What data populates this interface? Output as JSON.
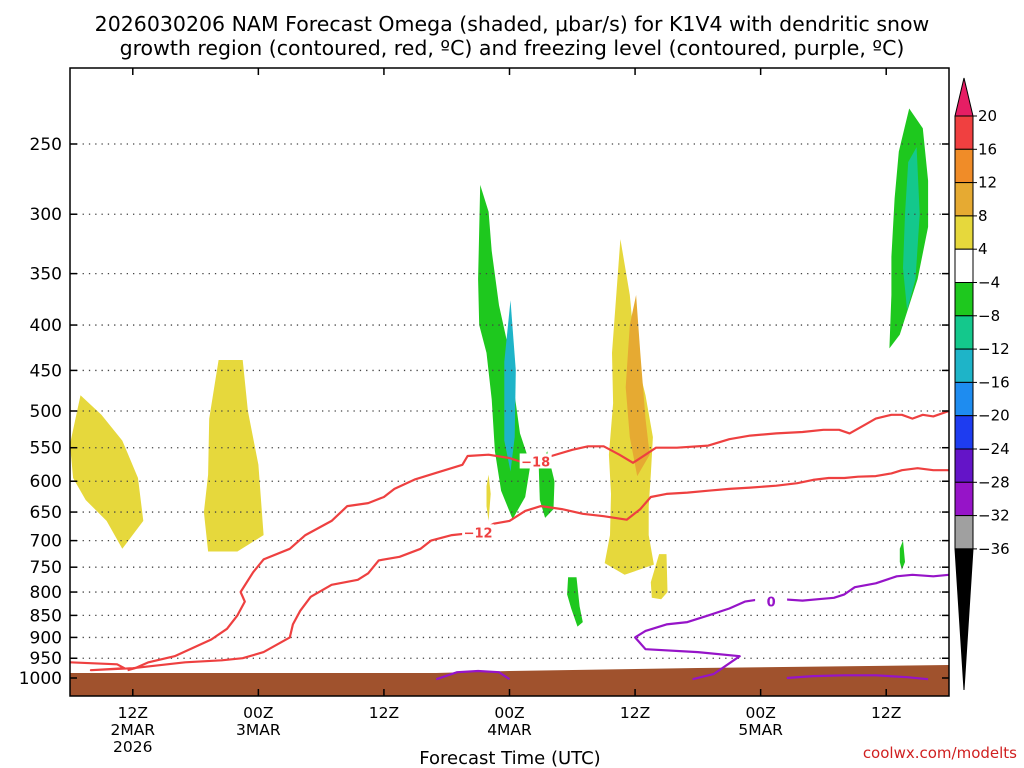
{
  "chart_data": {
    "type": "heatmap",
    "title_line1": "2026030206 NAM Forecast Omega (shaded, μbar/s) for K1V4 with dendritic snow",
    "title_line2": "growth region (contoured, red, ºC) and freezing level (contoured, purple, ºC)",
    "xlabel": "Forecast Time (UTC)",
    "credit": "coolwx.com/modelts",
    "y_axis": {
      "scale": "pressure",
      "units": "hPa",
      "reversed": true,
      "range": [
        1000,
        200
      ],
      "ticks": [
        250,
        300,
        350,
        400,
        450,
        500,
        550,
        600,
        650,
        700,
        750,
        800,
        850,
        900,
        950,
        1000
      ]
    },
    "x_axis": {
      "units": "forecast hour",
      "range": [
        0,
        84
      ],
      "ticks": [
        {
          "hour": 6,
          "line1": "12Z",
          "line2": "2MAR",
          "line3": "2026"
        },
        {
          "hour": 18,
          "line1": "00Z",
          "line2": "3MAR",
          "line3": ""
        },
        {
          "hour": 30,
          "line1": "12Z",
          "line2": "",
          "line3": ""
        },
        {
          "hour": 42,
          "line1": "00Z",
          "line2": "4MAR",
          "line3": ""
        },
        {
          "hour": 54,
          "line1": "12Z",
          "line2": "",
          "line3": ""
        },
        {
          "hour": 66,
          "line1": "00Z",
          "line2": "5MAR",
          "line3": ""
        },
        {
          "hour": 78,
          "line1": "12Z",
          "line2": "",
          "line3": ""
        }
      ]
    },
    "colorbar": {
      "levels": [
        "20",
        "16",
        "12",
        "8",
        "4",
        "−4",
        "−8",
        "−12",
        "−16",
        "−20",
        "−24",
        "−28",
        "−32",
        "−36"
      ],
      "colors": [
        "#e61e64",
        "#f04040",
        "#f08c28",
        "#e6aa32",
        "#e6d83c",
        "#ffffff",
        "#1ec81e",
        "#14c88c",
        "#1eb4c8",
        "#1e8cf0",
        "#1e3cf0",
        "#6414c8",
        "#9614c8",
        "#a0a0a0",
        "#000000"
      ]
    },
    "shaded_regions": [
      {
        "name": "yellow",
        "color": "#e6d83c",
        "points": [
          [
            0,
            545
          ],
          [
            1,
            480
          ],
          [
            3,
            505
          ],
          [
            5,
            540
          ],
          [
            6.5,
            595
          ],
          [
            7,
            665
          ],
          [
            5,
            715
          ],
          [
            3.5,
            665
          ],
          [
            1.5,
            630
          ],
          [
            0.3,
            595
          ]
        ]
      },
      {
        "name": "yellow",
        "color": "#e6d83c",
        "points": [
          [
            13.3,
            510
          ],
          [
            14.2,
            438
          ],
          [
            16.5,
            438
          ],
          [
            17,
            500
          ],
          [
            18,
            575
          ],
          [
            18.5,
            690
          ],
          [
            16,
            720
          ],
          [
            13.2,
            720
          ],
          [
            12.8,
            650
          ],
          [
            13.2,
            590
          ]
        ]
      },
      {
        "name": "green",
        "color": "#1ec81e",
        "points": [
          [
            39,
            355
          ],
          [
            39.2,
            278
          ],
          [
            40,
            298
          ],
          [
            40.3,
            330
          ],
          [
            41,
            380
          ],
          [
            42,
            430
          ],
          [
            42.5,
            480
          ],
          [
            43,
            530
          ],
          [
            44,
            575
          ],
          [
            43.5,
            625
          ],
          [
            42.3,
            662
          ],
          [
            41.2,
            615
          ],
          [
            40.6,
            555
          ],
          [
            40.3,
            485
          ],
          [
            39.8,
            430
          ],
          [
            39.1,
            400
          ]
        ]
      },
      {
        "name": "cyan",
        "color": "#1eb4c8",
        "points": [
          [
            41.5,
            440
          ],
          [
            42.1,
            375
          ],
          [
            42.6,
            450
          ],
          [
            42.5,
            535
          ],
          [
            42.1,
            585
          ],
          [
            41.5,
            540
          ]
        ]
      },
      {
        "name": "yellow",
        "color": "#e6d83c",
        "points": [
          [
            39.8,
            608
          ],
          [
            40,
            590
          ],
          [
            40.2,
            620
          ],
          [
            40,
            665
          ],
          [
            39.8,
            640
          ]
        ]
      },
      {
        "name": "green",
        "color": "#1ec81e",
        "points": [
          [
            44.8,
            580
          ],
          [
            45.6,
            555
          ],
          [
            46.3,
            600
          ],
          [
            46.2,
            645
          ],
          [
            45.4,
            660
          ],
          [
            44.9,
            630
          ]
        ]
      },
      {
        "name": "green",
        "color": "#1ec81e",
        "points": [
          [
            47.6,
            770
          ],
          [
            48.4,
            770
          ],
          [
            48.7,
            830
          ],
          [
            49,
            865
          ],
          [
            48.5,
            875
          ],
          [
            47.9,
            835
          ],
          [
            47.5,
            805
          ]
        ]
      },
      {
        "name": "yellow",
        "color": "#e6d83c",
        "points": [
          [
            51.8,
            430
          ],
          [
            52.6,
            320
          ],
          [
            53.5,
            370
          ],
          [
            54,
            430
          ],
          [
            55,
            480
          ],
          [
            55.7,
            535
          ],
          [
            55.5,
            590
          ],
          [
            55.3,
            640
          ],
          [
            55.3,
            690
          ],
          [
            55.8,
            745
          ],
          [
            53,
            765
          ],
          [
            51.1,
            742
          ],
          [
            51.6,
            690
          ],
          [
            51.7,
            620
          ],
          [
            51.5,
            560
          ],
          [
            51.9,
            490
          ]
        ]
      },
      {
        "name": "orange",
        "color": "#e6aa32",
        "points": [
          [
            53.5,
            400
          ],
          [
            54.1,
            370
          ],
          [
            54.5,
            430
          ],
          [
            55,
            510
          ],
          [
            55.4,
            560
          ],
          [
            54.2,
            592
          ],
          [
            53.5,
            535
          ],
          [
            53.1,
            470
          ]
        ]
      },
      {
        "name": "yellow",
        "color": "#e6d83c",
        "points": [
          [
            55.5,
            780
          ],
          [
            56.3,
            725
          ],
          [
            57,
            725
          ],
          [
            57.1,
            800
          ],
          [
            56.5,
            815
          ],
          [
            55.6,
            812
          ]
        ]
      },
      {
        "name": "green",
        "color": "#1ec81e",
        "points": [
          [
            78.5,
            335
          ],
          [
            78.8,
            288
          ],
          [
            79.2,
            255
          ],
          [
            80.2,
            228
          ],
          [
            81.5,
            240
          ],
          [
            82,
            275
          ],
          [
            82,
            310
          ],
          [
            81,
            355
          ],
          [
            79.3,
            410
          ],
          [
            78.3,
            425
          ],
          [
            78.5,
            370
          ]
        ]
      },
      {
        "name": "cyan-green",
        "color": "#14c88c",
        "points": [
          [
            79.8,
            300
          ],
          [
            80.1,
            262
          ],
          [
            80.9,
            252
          ],
          [
            81.2,
            300
          ],
          [
            80.8,
            355
          ],
          [
            80,
            385
          ],
          [
            79.6,
            345
          ]
        ]
      },
      {
        "name": "green",
        "color": "#1ec81e",
        "points": [
          [
            79.3,
            715
          ],
          [
            79.6,
            700
          ],
          [
            79.8,
            740
          ],
          [
            79.5,
            755
          ],
          [
            79.3,
            740
          ]
        ]
      }
    ],
    "contours": [
      {
        "name": "-18C",
        "color": "#ee4040",
        "label": "−18",
        "label_at": [
          44.5,
          570
        ],
        "points": [
          [
            5.5,
            980
          ],
          [
            6.2,
            975
          ],
          [
            7.5,
            960
          ],
          [
            10,
            945
          ],
          [
            13.5,
            905
          ],
          [
            15,
            880
          ],
          [
            16,
            850
          ],
          [
            16.7,
            820
          ],
          [
            16.3,
            800
          ],
          [
            17.5,
            760
          ],
          [
            18.5,
            735
          ],
          [
            21,
            715
          ],
          [
            22.5,
            690
          ],
          [
            25,
            665
          ],
          [
            26.5,
            640
          ],
          [
            28.5,
            635
          ],
          [
            30,
            625
          ],
          [
            31,
            612
          ],
          [
            33,
            597
          ],
          [
            35,
            587
          ],
          [
            37.5,
            575
          ],
          [
            38,
            562
          ],
          [
            40,
            560
          ],
          [
            42,
            565
          ],
          [
            43,
            570
          ],
          [
            46,
            562
          ],
          [
            48,
            553
          ],
          [
            49.5,
            548
          ],
          [
            51,
            548
          ],
          [
            52.5,
            560
          ],
          [
            53.8,
            572
          ],
          [
            55,
            560
          ],
          [
            56,
            550
          ],
          [
            58,
            550
          ],
          [
            61,
            547
          ],
          [
            63,
            538
          ],
          [
            65,
            533
          ],
          [
            67.5,
            530
          ],
          [
            70,
            528
          ],
          [
            72,
            525
          ],
          [
            73.5,
            525
          ],
          [
            74.5,
            530
          ],
          [
            76,
            518
          ],
          [
            77,
            510
          ],
          [
            78.5,
            505
          ],
          [
            79.5,
            505
          ],
          [
            80.5,
            510
          ],
          [
            81.5,
            505
          ],
          [
            82.5,
            507
          ],
          [
            84,
            500
          ]
        ]
      },
      {
        "name": "-12C",
        "color": "#ee4040",
        "label": "−12",
        "label_at": [
          39,
          685
        ],
        "points": [
          [
            0,
            960
          ],
          [
            4.5,
            965
          ],
          [
            5.2,
            975
          ],
          [
            2,
            980
          ],
          [
            6,
            975
          ],
          [
            11,
            960
          ],
          [
            14.5,
            955
          ],
          [
            16.5,
            950
          ],
          [
            18.5,
            935
          ],
          [
            21,
            900
          ],
          [
            21.3,
            870
          ],
          [
            22,
            840
          ],
          [
            23,
            810
          ],
          [
            25,
            785
          ],
          [
            27.5,
            775
          ],
          [
            28.5,
            762
          ],
          [
            29.5,
            737
          ],
          [
            31.5,
            730
          ],
          [
            33.5,
            715
          ],
          [
            34.5,
            700
          ],
          [
            36.5,
            690
          ],
          [
            39,
            685
          ],
          [
            40.5,
            670
          ],
          [
            42,
            665
          ],
          [
            43.5,
            648
          ],
          [
            45,
            640
          ],
          [
            47,
            645
          ],
          [
            49,
            653
          ],
          [
            51,
            657
          ],
          [
            53.2,
            663
          ],
          [
            54.5,
            645
          ],
          [
            55.5,
            625
          ],
          [
            57,
            620
          ],
          [
            59,
            618
          ],
          [
            61,
            615
          ],
          [
            63,
            612
          ],
          [
            65,
            610
          ],
          [
            67.5,
            607
          ],
          [
            69.5,
            603
          ],
          [
            71,
            598
          ],
          [
            72.5,
            595
          ],
          [
            74,
            595
          ],
          [
            75.3,
            593
          ],
          [
            77,
            592
          ],
          [
            78.5,
            588
          ],
          [
            79.5,
            583
          ],
          [
            81,
            580
          ],
          [
            82.5,
            583
          ],
          [
            84,
            583
          ]
        ]
      },
      {
        "name": "0C",
        "color": "#9614c8",
        "label": "0",
        "label_at": [
          67,
          820
        ],
        "points": [
          [
            35,
            1003
          ],
          [
            37,
            985
          ],
          [
            39,
            982
          ],
          [
            41,
            985
          ],
          [
            42,
            1003
          ],
          null,
          [
            59.5,
            1003
          ],
          [
            61.5,
            990
          ],
          [
            64,
            945
          ],
          [
            60,
            935
          ],
          [
            55,
            928
          ],
          [
            54,
            900
          ],
          [
            55,
            885
          ],
          [
            57,
            870
          ],
          [
            59,
            865
          ],
          [
            61,
            850
          ],
          [
            63,
            835
          ],
          [
            64.5,
            820
          ],
          [
            66,
            815
          ],
          [
            68,
            815
          ],
          [
            70,
            818
          ],
          [
            71.5,
            815
          ],
          [
            73,
            812
          ],
          [
            74,
            805
          ],
          [
            75,
            790
          ],
          [
            77,
            782
          ],
          [
            79,
            768
          ],
          [
            80.5,
            765
          ],
          [
            82.5,
            768
          ],
          [
            84,
            765
          ],
          null,
          [
            68.5,
            1000
          ],
          [
            71,
            995
          ],
          [
            74,
            993
          ],
          [
            77,
            993
          ],
          [
            80,
            998
          ],
          [
            82,
            1003
          ]
        ]
      }
    ]
  }
}
